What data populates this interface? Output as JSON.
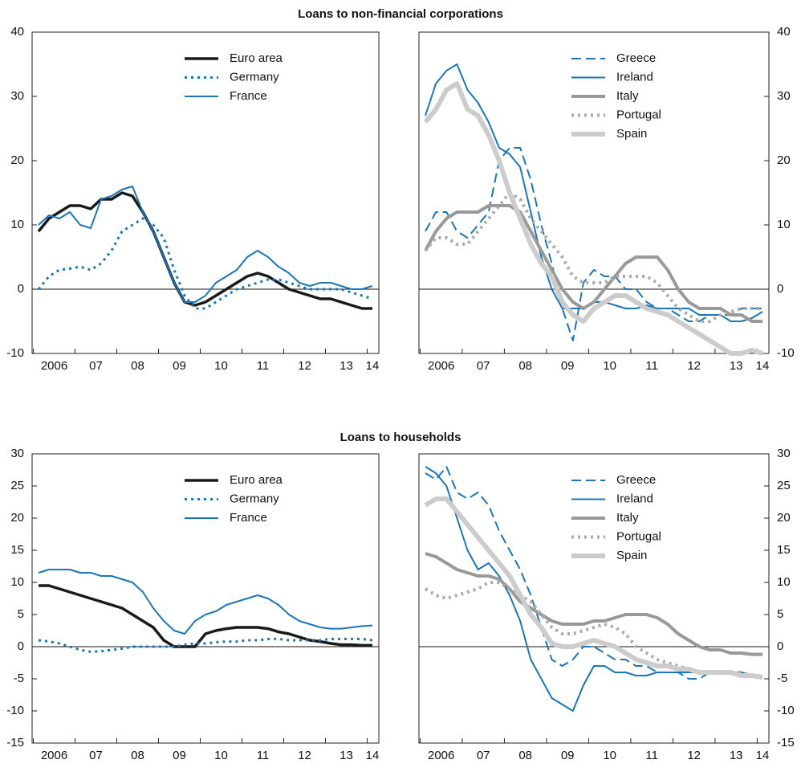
{
  "titles": [
    "Loans to non-financial corporations",
    "Loans to households"
  ],
  "chart_data": [
    {
      "type": "line",
      "ytick_side": "left",
      "legend": "upper center",
      "categories": [
        null,
        null,
        "2006",
        null,
        null,
        null,
        "07",
        null,
        null,
        null,
        "08",
        null,
        null,
        null,
        "09",
        null,
        null,
        null,
        "10",
        null,
        null,
        null,
        "11",
        null,
        null,
        null,
        "12",
        null,
        null,
        null,
        "13",
        null,
        "14"
      ],
      "ylim": [
        -10,
        40
      ],
      "yticks": [
        -10,
        0,
        10,
        20,
        30,
        40
      ],
      "series": [
        {
          "name": "Euro area",
          "color": "#1a1a1a",
          "dash": "solid",
          "width": 3.5,
          "values": [
            9,
            11,
            12,
            13,
            13,
            12.5,
            14,
            14,
            15,
            14.5,
            12,
            9,
            5,
            1,
            -2,
            -2.5,
            -2,
            -1,
            0,
            1,
            2,
            2.5,
            2,
            1,
            0,
            -0.5,
            -1,
            -1.5,
            -1.5,
            -2,
            -2.5,
            -3,
            -3
          ]
        },
        {
          "name": "Germany",
          "color": "#1a75bb",
          "dash": "dotted",
          "width": 3,
          "values": [
            0,
            2,
            3,
            3.2,
            3.5,
            3,
            4,
            6,
            9,
            10,
            11,
            10,
            8,
            3,
            -1,
            -3,
            -3,
            -2,
            -1,
            0,
            0.5,
            1,
            1.5,
            1.5,
            1,
            0.5,
            0,
            0,
            0,
            0,
            -0.5,
            -1,
            -1.5
          ]
        },
        {
          "name": "France",
          "color": "#1a75bb",
          "dash": "solid",
          "width": 2,
          "values": [
            10,
            11.5,
            11,
            12,
            10,
            9.5,
            14,
            14.5,
            15.5,
            16,
            12,
            9,
            5,
            1,
            -2,
            -2,
            -1,
            1,
            2,
            3,
            5,
            6,
            5,
            3.5,
            2.5,
            1,
            0.5,
            1,
            1,
            0.5,
            0,
            0,
            0.5
          ]
        }
      ]
    },
    {
      "type": "line",
      "ytick_side": "right",
      "legend": "upper center",
      "categories": [
        null,
        null,
        "2006",
        null,
        null,
        null,
        "07",
        null,
        null,
        null,
        "08",
        null,
        null,
        null,
        "09",
        null,
        null,
        null,
        "10",
        null,
        null,
        null,
        "11",
        null,
        null,
        null,
        "12",
        null,
        null,
        null,
        "13",
        null,
        "14"
      ],
      "ylim": [
        -10,
        40
      ],
      "yticks": [
        -10,
        0,
        10,
        20,
        30,
        40
      ],
      "series": [
        {
          "name": "Greece",
          "color": "#1a75bb",
          "dash": "dashed",
          "width": 2,
          "values": [
            9,
            12,
            12,
            9,
            8,
            10,
            12,
            20,
            22,
            22,
            17,
            10,
            4,
            -3,
            -8,
            1,
            3,
            2,
            2,
            0,
            0,
            -2,
            -3,
            -3,
            -4,
            -5,
            -5,
            -4,
            -4,
            -4,
            -3,
            -3,
            -3
          ]
        },
        {
          "name": "Ireland",
          "color": "#1a75bb",
          "dash": "solid",
          "width": 2,
          "values": [
            27,
            32,
            34,
            35,
            31,
            29,
            26,
            22,
            21,
            19,
            12,
            5,
            0,
            -3,
            -3,
            -3,
            -2,
            -2,
            -2.5,
            -3,
            -3,
            -2.5,
            -3,
            -3,
            -3,
            -3,
            -4,
            -4,
            -4,
            -5,
            -5,
            -4.5,
            -3.5
          ]
        },
        {
          "name": "Italy",
          "color": "#999999",
          "dash": "solid",
          "width": 4,
          "values": [
            6,
            9,
            11,
            12,
            12,
            12,
            13,
            13,
            13,
            12,
            9,
            6,
            3,
            0,
            -2,
            -3,
            -2,
            0,
            2,
            4,
            5,
            5,
            5,
            3,
            0,
            -2,
            -3,
            -3,
            -3,
            -4,
            -4,
            -5,
            -5
          ]
        },
        {
          "name": "Portugal",
          "color": "#aaaaaa",
          "dash": "dotted",
          "width": 4,
          "values": [
            6,
            8,
            8,
            7,
            7,
            9,
            11,
            13,
            15,
            14,
            11,
            9,
            7,
            5,
            2,
            1,
            1,
            1,
            2,
            2,
            2,
            2,
            1,
            -1,
            -3,
            -4,
            -5,
            -5,
            -4,
            -3.5,
            -3,
            -3,
            -3
          ]
        },
        {
          "name": "Spain",
          "color": "#cccccc",
          "dash": "solid",
          "width": 6,
          "values": [
            26,
            28,
            31,
            32,
            28,
            27,
            24,
            20,
            15,
            11,
            7,
            4,
            2,
            -2,
            -4,
            -5,
            -3,
            -2,
            -1,
            -1,
            -2,
            -3,
            -3.5,
            -4,
            -5,
            -6,
            -7,
            -8,
            -9,
            -10,
            -10,
            -9.5,
            -10
          ]
        }
      ]
    },
    {
      "type": "line",
      "ytick_side": "left",
      "legend": "upper center",
      "categories": [
        null,
        null,
        "2006",
        null,
        null,
        null,
        "07",
        null,
        null,
        null,
        "08",
        null,
        null,
        null,
        "09",
        null,
        null,
        null,
        "10",
        null,
        null,
        null,
        "11",
        null,
        null,
        null,
        "12",
        null,
        null,
        null,
        "13",
        null,
        "14"
      ],
      "ylim": [
        -15,
        30
      ],
      "yticks": [
        -15,
        -10,
        -5,
        0,
        5,
        10,
        15,
        20,
        25,
        30
      ],
      "series": [
        {
          "name": "Euro area",
          "color": "#1a1a1a",
          "dash": "solid",
          "width": 3.5,
          "values": [
            9.5,
            9.5,
            9,
            8.5,
            8,
            7.5,
            7,
            6.5,
            6,
            5,
            4,
            3,
            1,
            0,
            0,
            0,
            2,
            2.5,
            2.8,
            3,
            3,
            3,
            2.8,
            2.3,
            2,
            1.5,
            1,
            0.8,
            0.5,
            0.3,
            0.3,
            0.2,
            0.2
          ]
        },
        {
          "name": "Germany",
          "color": "#1a75bb",
          "dash": "dotted",
          "width": 3,
          "values": [
            1,
            0.8,
            0.5,
            0,
            -0.5,
            -0.8,
            -0.7,
            -0.5,
            -0.3,
            0,
            0,
            0,
            0,
            0,
            0.3,
            0.5,
            0.5,
            0.7,
            0.8,
            0.8,
            1,
            1,
            1.2,
            1.2,
            1,
            1,
            1,
            1,
            1.2,
            1.2,
            1.2,
            1.2,
            1
          ]
        },
        {
          "name": "France",
          "color": "#1a75bb",
          "dash": "solid",
          "width": 2,
          "values": [
            11.5,
            12,
            12,
            12,
            11.5,
            11.5,
            11,
            11,
            10.5,
            10,
            8.5,
            6,
            4,
            2.5,
            2,
            4,
            5,
            5.5,
            6.5,
            7,
            7.5,
            8,
            7.5,
            6.5,
            5,
            4,
            3.5,
            3,
            2.8,
            2.8,
            3,
            3.2,
            3.3
          ]
        }
      ]
    },
    {
      "type": "line",
      "ytick_side": "right",
      "legend": "upper center",
      "categories": [
        null,
        null,
        "2006",
        null,
        null,
        null,
        "07",
        null,
        null,
        null,
        "08",
        null,
        null,
        null,
        "09",
        null,
        null,
        null,
        "10",
        null,
        null,
        null,
        "11",
        null,
        null,
        null,
        "12",
        null,
        null,
        null,
        "13",
        null,
        "14"
      ],
      "ylim": [
        -15,
        30
      ],
      "yticks": [
        -15,
        -10,
        -5,
        0,
        5,
        10,
        15,
        20,
        25,
        30
      ],
      "series": [
        {
          "name": "Greece",
          "color": "#1a75bb",
          "dash": "dashed",
          "width": 2,
          "values": [
            27,
            26,
            28,
            24,
            23,
            24,
            22,
            18,
            15,
            12,
            8,
            3,
            -2,
            -3,
            -2,
            0,
            0,
            -1,
            -2,
            -2,
            -3,
            -3,
            -4,
            -4,
            -4,
            -5,
            -5,
            -4,
            -4,
            -4,
            -4,
            -4.5,
            -4.5
          ]
        },
        {
          "name": "Ireland",
          "color": "#1a75bb",
          "dash": "solid",
          "width": 2,
          "values": [
            28,
            27,
            25,
            20,
            15,
            12,
            13,
            11,
            8,
            4,
            -2,
            -5,
            -8,
            -9,
            -10,
            -6,
            -3,
            -3,
            -4,
            -4,
            -4.5,
            -4.5,
            -4,
            -4,
            -4,
            -4,
            -4,
            -4,
            -4,
            -4,
            -4,
            -4.5,
            -4.5
          ]
        },
        {
          "name": "Italy",
          "color": "#999999",
          "dash": "solid",
          "width": 4,
          "values": [
            14.5,
            14,
            13,
            12,
            11.5,
            11,
            11,
            10.5,
            9,
            7,
            6,
            5,
            4,
            3.5,
            3.5,
            3.5,
            4,
            4,
            4.5,
            5,
            5,
            5,
            4.5,
            3.5,
            2,
            1,
            0,
            -0.5,
            -0.5,
            -1,
            -1,
            -1.2,
            -1.2
          ]
        },
        {
          "name": "Portugal",
          "color": "#aaaaaa",
          "dash": "dotted",
          "width": 4,
          "values": [
            9,
            8,
            7.5,
            8,
            8.5,
            9,
            10,
            10,
            9,
            8,
            7,
            5,
            3,
            2,
            2,
            2.5,
            3,
            3.5,
            3,
            2,
            0,
            -1,
            -2,
            -2.5,
            -3,
            -3.5,
            -4,
            -4,
            -4,
            -4,
            -4,
            -4.5,
            -4.5
          ]
        },
        {
          "name": "Spain",
          "color": "#cccccc",
          "dash": "solid",
          "width": 6,
          "values": [
            22,
            23,
            23,
            21,
            19,
            17,
            15,
            13,
            11,
            8,
            5,
            3,
            0.5,
            0,
            0,
            0.5,
            1,
            0.5,
            0,
            -1,
            -2,
            -2.5,
            -3,
            -3,
            -3.5,
            -3.5,
            -4,
            -4,
            -4,
            -4,
            -4.5,
            -4.5,
            -4.8
          ]
        }
      ]
    }
  ]
}
